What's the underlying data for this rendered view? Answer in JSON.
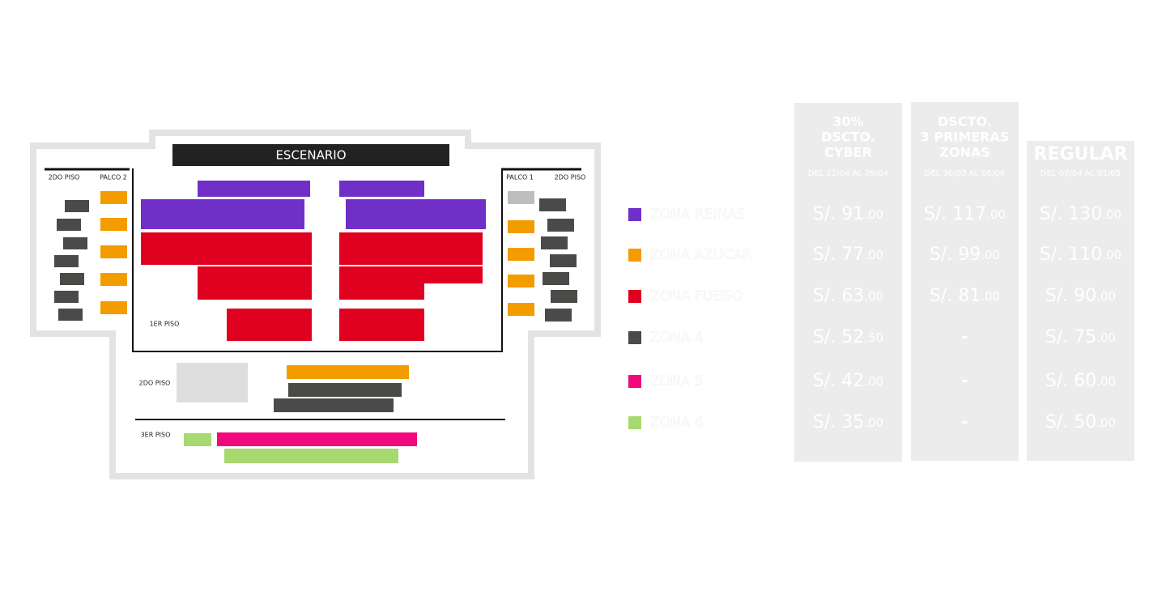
{
  "map": {
    "stage": "ESCENARIO",
    "labels": [
      "2DO PISO",
      "PALCO 2",
      "PALCO 1",
      "2DO PISO",
      "1ER PISO",
      "2DO PISO",
      "3ER PISO"
    ]
  },
  "pricing": {
    "columns": [
      {
        "title": [
          "30%",
          "DSCTO.",
          "CYBER"
        ],
        "dates": "DEL 22/04 AL 29/04"
      },
      {
        "title": [
          "DSCTO.",
          "3 PRIMERAS",
          "ZONAS"
        ],
        "dates": "DEL 30/03 AL 06/04"
      },
      {
        "title": [
          "REGULAR"
        ],
        "dates": "DEL 07/04 AL 01/05"
      }
    ],
    "rows": [
      {
        "zone": "ZONA REINAS",
        "color": "#7030c8",
        "prices": [
          {
            "main": "S/. 91",
            "cents": ".00"
          },
          {
            "main": "S/. 117",
            "cents": ".00"
          },
          {
            "main": "S/. 130",
            "cents": ".00"
          }
        ]
      },
      {
        "zone": "ZONA AZUCAR",
        "color": "#f29c00",
        "prices": [
          {
            "main": "S/. 77",
            "cents": ".00"
          },
          {
            "main": "S/. 99",
            "cents": ".00"
          },
          {
            "main": "S/. 110",
            "cents": ".00"
          }
        ]
      },
      {
        "zone": "ZONA FUEGO",
        "color": "#e0001f",
        "prices": [
          {
            "main": "S/. 63",
            "cents": ".00"
          },
          {
            "main": "S/. 81",
            "cents": ".00"
          },
          {
            "main": "S/. 90",
            "cents": ".00"
          }
        ]
      },
      {
        "zone": "ZONA 4",
        "color": "#4a4a48",
        "prices": [
          {
            "main": "S/. 52",
            "cents": ".50"
          },
          "-",
          {
            "main": "S/. 75",
            "cents": ".00"
          }
        ]
      },
      {
        "zone": "ZONA 5",
        "color": "#f0097d",
        "prices": [
          {
            "main": "S/. 42",
            "cents": ".00"
          },
          "-",
          {
            "main": "S/. 60",
            "cents": ".00"
          }
        ]
      },
      {
        "zone": "ZONA 6",
        "color": "#a8d870",
        "prices": [
          {
            "main": "S/. 35",
            "cents": ".00"
          },
          "-",
          {
            "main": "S/. 50",
            "cents": ".00"
          }
        ]
      }
    ]
  }
}
